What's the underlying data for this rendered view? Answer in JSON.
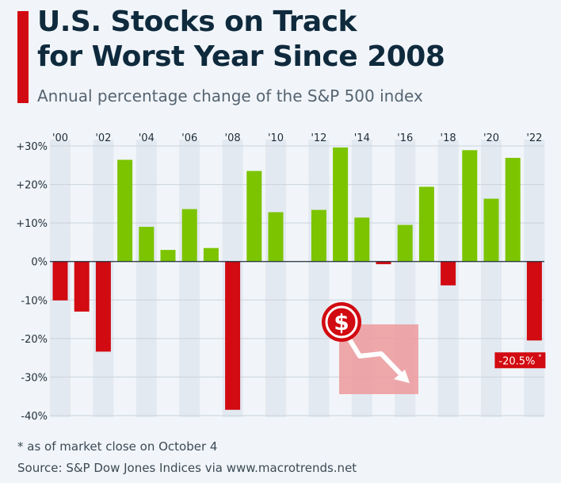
{
  "colors": {
    "accent": "#d20a11",
    "positive": "#7cc400",
    "negative": "#d20a11",
    "title": "#0f2a3d",
    "background": "#f1f5f9",
    "stripe": "#e2e9f1"
  },
  "header": {
    "title_line1": "U.S. Stocks on Track",
    "title_line2": "for Worst Year Since 2008",
    "subtitle": "Annual percentage change of the S&P 500 index"
  },
  "footer": {
    "footnote": "* as of market close on October 4",
    "source": "Source: S&P Dow Jones Indices via www.macrotrends.net"
  },
  "icons": {
    "dollar": "dollar-icon",
    "arrow": "down-trend-arrow-icon"
  },
  "chart_data": {
    "type": "bar",
    "categories": [
      "'00",
      "'01",
      "'02",
      "'03",
      "'04",
      "'05",
      "'06",
      "'07",
      "'08",
      "'09",
      "'10",
      "'11",
      "'12",
      "'13",
      "'14",
      "'15",
      "'16",
      "'17",
      "'18",
      "'19",
      "'20",
      "'21",
      "'22"
    ],
    "tick_labels": [
      "'00",
      "'02",
      "'04",
      "'06",
      "'08",
      "'10",
      "'12",
      "'14",
      "'16",
      "'18",
      "'20",
      "'22"
    ],
    "values": [
      -10.1,
      -13.0,
      -23.4,
      26.4,
      9.0,
      3.0,
      13.6,
      3.5,
      -38.5,
      23.5,
      12.8,
      0.0,
      13.4,
      29.6,
      11.4,
      -0.7,
      9.5,
      19.4,
      -6.2,
      28.9,
      16.3,
      26.9,
      -20.5
    ],
    "y_ticks": [
      30,
      20,
      10,
      0,
      -10,
      -20,
      -30,
      -40
    ],
    "y_tick_labels": [
      "+30%",
      "+20%",
      "+10%",
      "0%",
      "-10%",
      "-20%",
      "-30%",
      "-40%"
    ],
    "ylim": [
      -40,
      30
    ],
    "grid": true,
    "x_axis_position": "top",
    "annotation": {
      "category": "'22",
      "text": "-20.5%",
      "suffix": "*"
    }
  }
}
